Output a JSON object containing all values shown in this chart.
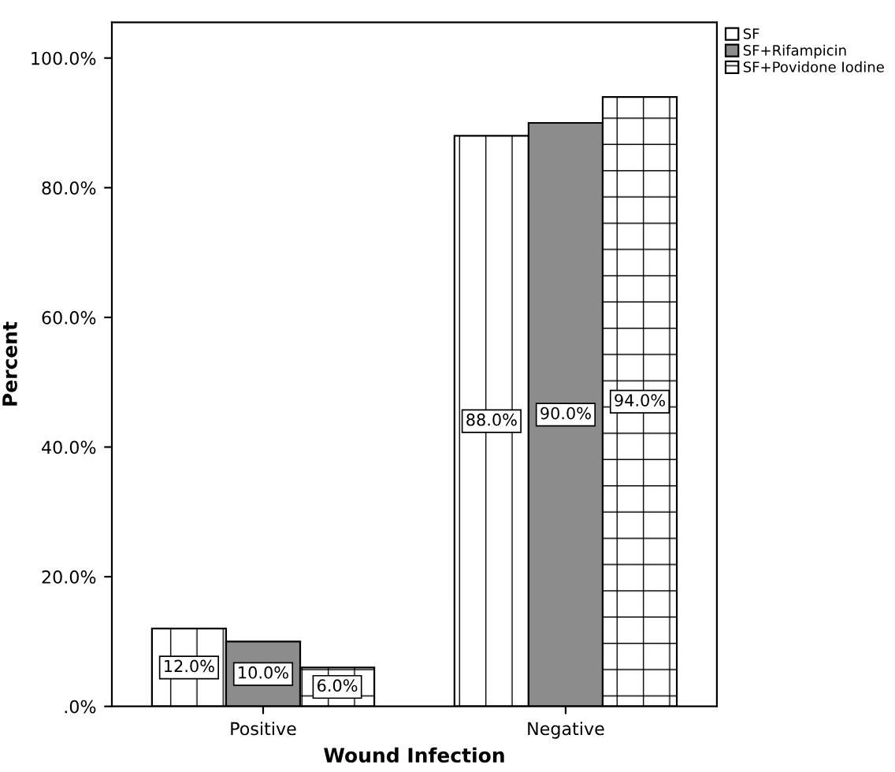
{
  "chart_data": {
    "type": "bar",
    "xlabel": "Wound Infection",
    "ylabel": "Percent",
    "categories": [
      "Positive",
      "Negative"
    ],
    "series": [
      {
        "name": "SF",
        "color": "#ffffff",
        "values": [
          12.0,
          88.0
        ],
        "value_labels": [
          "12.0%",
          "88.0%"
        ]
      },
      {
        "name": "SF+Rifampicin",
        "color": "#8c8c8c",
        "values": [
          10.0,
          90.0
        ],
        "value_labels": [
          "10.0%",
          "90.0%"
        ]
      },
      {
        "name": "SF+Povidone Iodine",
        "color": "#ffffff",
        "values": [
          6.0,
          94.0
        ],
        "value_labels": [
          "6.0%",
          "94.0%"
        ]
      }
    ],
    "ylim": [
      0,
      105.5
    ],
    "yticks": [
      {
        "value": 0,
        "label": ".0%"
      },
      {
        "value": 20,
        "label": "20.0%"
      },
      {
        "value": 40,
        "label": "40.0%"
      },
      {
        "value": 60,
        "label": "60.0%"
      },
      {
        "value": 80,
        "label": "80.0%"
      },
      {
        "value": 100,
        "label": "100.0%"
      }
    ],
    "grid": false,
    "legend": "top right"
  }
}
